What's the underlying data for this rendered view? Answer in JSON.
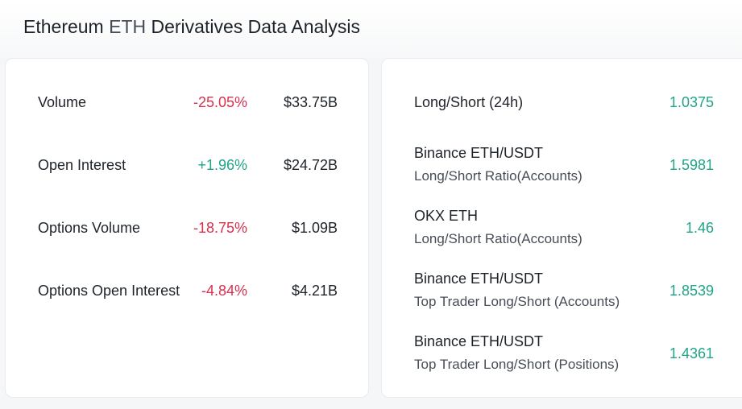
{
  "header": {
    "title_prefix": "Ethereum",
    "title_accent": "ETH",
    "title_suffix": "Derivatives Data Analysis"
  },
  "colors": {
    "negative": "#d9304e",
    "positive": "#20a58a",
    "text": "#1e2329"
  },
  "metrics": [
    {
      "label": "Volume",
      "change": "-25.05%",
      "value": "$33.75B",
      "trend": "negative"
    },
    {
      "label": "Open Interest",
      "change": "+1.96%",
      "value": "$24.72B",
      "trend": "positive"
    },
    {
      "label": "Options Volume",
      "change": "-18.75%",
      "value": "$1.09B",
      "trend": "negative"
    },
    {
      "label": "Options Open Interest",
      "change": "-4.84%",
      "value": "$4.21B",
      "trend": "negative"
    }
  ],
  "ratios": [
    {
      "label": "Long/Short (24h)",
      "sublabel": "",
      "value": "1.0375"
    },
    {
      "label": "Binance ETH/USDT",
      "sublabel": "Long/Short Ratio(Accounts)",
      "value": "1.5981"
    },
    {
      "label": "OKX ETH",
      "sublabel": "Long/Short Ratio(Accounts)",
      "value": "1.46"
    },
    {
      "label": "Binance ETH/USDT",
      "sublabel": "Top Trader Long/Short (Accounts)",
      "value": "1.8539"
    },
    {
      "label": "Binance ETH/USDT",
      "sublabel": "Top Trader Long/Short (Positions)",
      "value": "1.4361"
    }
  ]
}
